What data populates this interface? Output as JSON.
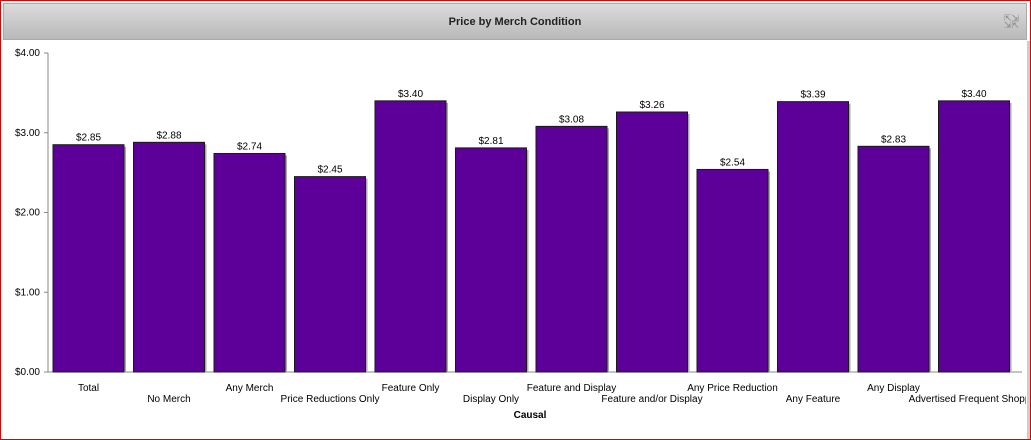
{
  "header": {
    "title": "Price by Merch Condition",
    "expand_icon": "expand-arrows-icon"
  },
  "chart_data": {
    "type": "bar",
    "title": "Price by Merch Condition",
    "xlabel": "Causal",
    "ylabel": "",
    "ylim": [
      0,
      4
    ],
    "yticks": [
      "$0.00",
      "$1.00",
      "$2.00",
      "$3.00",
      "$4.00"
    ],
    "categories": [
      "Total",
      "No Merch",
      "Any Merch",
      "Price Reductions Only",
      "Feature Only",
      "Display Only",
      "Feature and Display",
      "Feature and/or Display",
      "Any Price Reduction",
      "Any Feature",
      "Any Display",
      "Advertised Frequent Shopper"
    ],
    "values": [
      2.85,
      2.88,
      2.74,
      2.45,
      3.4,
      2.81,
      3.08,
      3.26,
      2.54,
      3.39,
      2.83,
      3.4
    ],
    "data_labels": [
      "$2.85",
      "$2.88",
      "$2.74",
      "$2.45",
      "$3.40",
      "$2.81",
      "$3.08",
      "$3.26",
      "$2.54",
      "$3.39",
      "$2.83",
      "$3.40"
    ],
    "bar_color": "#5c0099",
    "grid": false,
    "legend": "none"
  }
}
